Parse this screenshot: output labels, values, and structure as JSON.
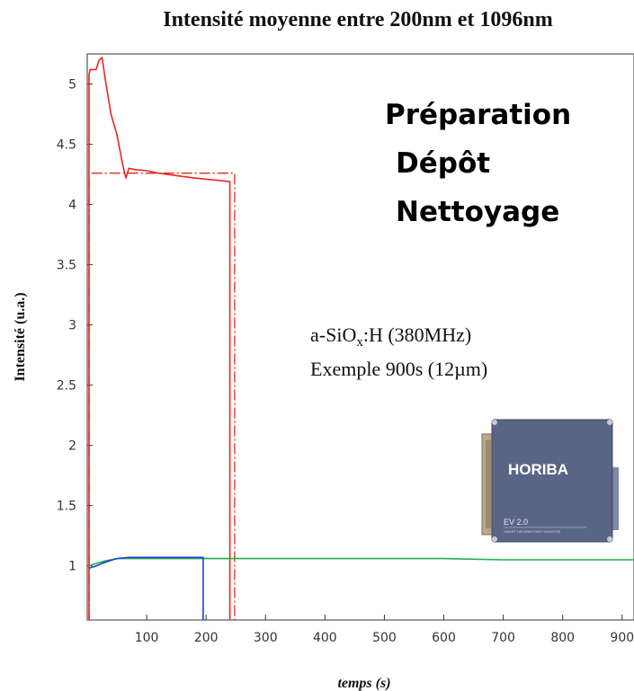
{
  "chart_data": {
    "type": "line",
    "title": "Intensité moyenne entre 200nm et 1096nm",
    "xlabel": "temps (s)",
    "ylabel": "Intensité (u.a.)",
    "xlim": [
      0,
      920
    ],
    "ylim": [
      0.55,
      5.25
    ],
    "xticks": [
      100,
      200,
      300,
      400,
      500,
      600,
      700,
      800,
      900
    ],
    "yticks": [
      1,
      1.5,
      2,
      2.5,
      3,
      3.5,
      4,
      4.5,
      5
    ],
    "grid": false,
    "legend": {
      "placement": "top-right",
      "entries": [
        {
          "label": "Préparation",
          "color": "#1f3fd8"
        },
        {
          "label": "Dépôt",
          "color": "#1fb04a"
        },
        {
          "label": "Nettoyage",
          "color": "#e8281f"
        }
      ]
    },
    "annotations": {
      "line1_prefix": "a-SiO",
      "line1_sub": "x",
      "line1_suffix": ":H  (380MHz)",
      "line2": "Exemple 900s (12µm)"
    },
    "series": [
      {
        "color": "#e8281f",
        "style": "solid",
        "x": [
          3,
          3,
          5,
          15,
          20,
          25,
          30,
          40,
          50,
          60,
          65,
          70,
          80,
          100,
          120,
          150,
          180,
          200,
          220,
          240,
          240
        ],
        "y": [
          0.55,
          5.08,
          5.12,
          5.12,
          5.2,
          5.22,
          5.05,
          4.75,
          4.58,
          4.32,
          4.22,
          4.3,
          4.29,
          4.28,
          4.26,
          4.24,
          4.22,
          4.21,
          4.2,
          4.19,
          0.55
        ]
      },
      {
        "color": "#e8281f",
        "style": "dashdot",
        "x": [
          3,
          3,
          248,
          248
        ],
        "y": [
          0.55,
          4.26,
          4.26,
          0.55
        ]
      },
      {
        "color": "#1fb04a",
        "style": "solid",
        "x": [
          3,
          15,
          30,
          50,
          70,
          100,
          150,
          200,
          250,
          300,
          400,
          500,
          600,
          700,
          800,
          920
        ],
        "y": [
          1.0,
          1.02,
          1.04,
          1.06,
          1.06,
          1.06,
          1.06,
          1.06,
          1.06,
          1.06,
          1.06,
          1.06,
          1.06,
          1.05,
          1.05,
          1.05
        ]
      },
      {
        "color": "#1f3fd8",
        "style": "solid",
        "x": [
          3,
          15,
          30,
          50,
          70,
          100,
          150,
          195,
          195
        ],
        "y": [
          0.98,
          1.0,
          1.03,
          1.06,
          1.07,
          1.07,
          1.07,
          1.07,
          0.55
        ]
      }
    ]
  },
  "device": {
    "brand": "HORIBA",
    "model": "EV 2.0",
    "subtitle": "SMART DELENDPOINT MONITOR",
    "color": "#5a6585"
  }
}
